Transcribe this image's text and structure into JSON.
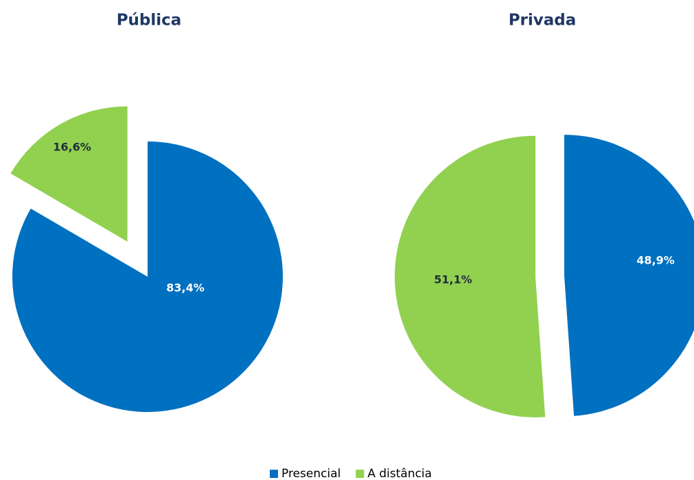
{
  "chart_data": [
    {
      "type": "pie",
      "title": "Pública",
      "categories": [
        "Presencial",
        "A distância"
      ],
      "values": [
        83.4,
        16.6
      ],
      "value_labels": [
        "83,4%",
        "16,6%"
      ],
      "colors": [
        "#0070c0",
        "#92d050"
      ]
    },
    {
      "type": "pie",
      "title": "Privada",
      "categories": [
        "Presencial",
        "A distância"
      ],
      "values": [
        48.9,
        51.1
      ],
      "value_labels": [
        "48,9%",
        "51,1%"
      ],
      "colors": [
        "#0070c0",
        "#92d050"
      ]
    }
  ]
}
